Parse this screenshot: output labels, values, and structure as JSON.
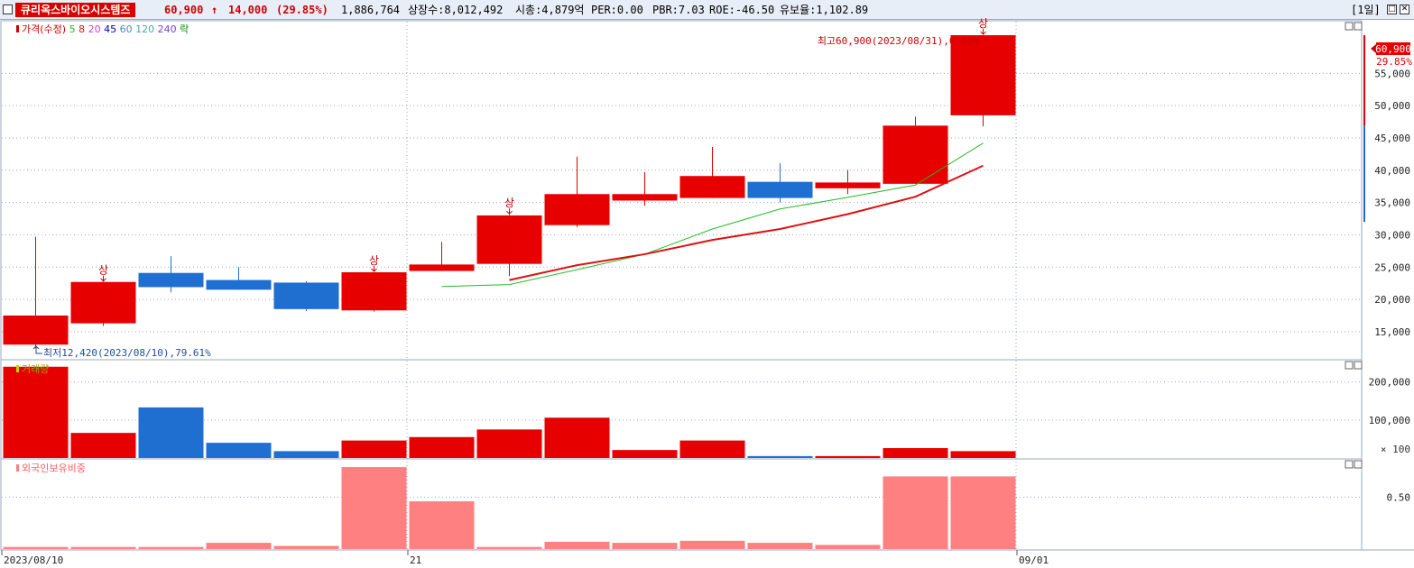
{
  "header": {
    "stock_name": "큐리옥스바이오시스템즈",
    "price": "60,900",
    "change_arrow": "↑",
    "change": "14,000",
    "change_pct": "(29.85%)",
    "volume": "1,886,764",
    "shares": "상장수:8,012,492",
    "market_cap": "시총:4,879억",
    "per": "PER:0.00",
    "pbr": "PBR:7.03",
    "roe": "ROE:-46.50",
    "float_ratio": "유보율:1,102.89",
    "period": "[1일]"
  },
  "colors": {
    "up": "#e60000",
    "down": "#1e6fd0",
    "ma5": "#22bb22",
    "ma8": "#dd1111",
    "foreign": "#ff8080",
    "grid": "#9aa8c0"
  },
  "chart_data": [
    {
      "type": "candlestick",
      "panel": "price",
      "legend": [
        {
          "label": "가격(수정)",
          "color": "#cc0000"
        },
        {
          "label": "5",
          "color": "#22bb22"
        },
        {
          "label": "8",
          "color": "#dd1111"
        },
        {
          "label": "20",
          "color": "#cc44cc"
        },
        {
          "label": "45",
          "color": "#0000aa"
        },
        {
          "label": "60",
          "color": "#4488cc"
        },
        {
          "label": "120",
          "color": "#44aaaa"
        },
        {
          "label": "240",
          "color": "#7744cc"
        },
        {
          "label": "락",
          "color": "#008800"
        }
      ],
      "x_labels": [
        "2023/08/10",
        "21",
        "09/01"
      ],
      "y_ticks": [
        15000,
        20000,
        25000,
        30000,
        35000,
        40000,
        45000,
        50000,
        55000
      ],
      "y_tick_labels": [
        "15,000",
        "20,000",
        "25,000",
        "30,000",
        "35,000",
        "40,000",
        "45,000",
        "50,000",
        "55,000"
      ],
      "ylim": [
        10800,
        63000
      ],
      "candles": [
        {
          "open": 13000,
          "high": 29700,
          "low": 12420,
          "close": 17500
        },
        {
          "open": 16300,
          "high": 22700,
          "low": 15900,
          "close": 22700
        },
        {
          "open": 24100,
          "high": 26700,
          "low": 21100,
          "close": 21900
        },
        {
          "open": 23000,
          "high": 25000,
          "low": 21500,
          "close": 21500
        },
        {
          "open": 22600,
          "high": 22800,
          "low": 18200,
          "close": 18500
        },
        {
          "open": 18300,
          "high": 24200,
          "low": 18100,
          "close": 24200
        },
        {
          "open": 24400,
          "high": 28900,
          "low": 24400,
          "close": 25400
        },
        {
          "open": 25500,
          "high": 33100,
          "low": 23600,
          "close": 33000
        },
        {
          "open": 31500,
          "high": 42100,
          "low": 31200,
          "close": 36300
        },
        {
          "open": 35300,
          "high": 39700,
          "low": 34500,
          "close": 36300
        },
        {
          "open": 35700,
          "high": 43600,
          "low": 35700,
          "close": 39100
        },
        {
          "open": 38200,
          "high": 41100,
          "low": 35000,
          "close": 35700
        },
        {
          "open": 37200,
          "high": 40000,
          "low": 36300,
          "close": 38100
        },
        {
          "open": 37900,
          "high": 48300,
          "low": 37900,
          "close": 46900
        },
        {
          "open": 48500,
          "high": 60900,
          "low": 46800,
          "close": 60900
        }
      ],
      "upper_limit_marks": [
        1,
        5,
        7,
        14
      ],
      "upper_limit_label": "상",
      "ma5": [
        null,
        null,
        null,
        null,
        null,
        null,
        22000,
        22300,
        24600,
        27000,
        30900,
        34000,
        35800,
        37700,
        44200
      ],
      "ma8": [
        null,
        null,
        null,
        null,
        null,
        null,
        null,
        23000,
        25300,
        27000,
        29200,
        30900,
        33200,
        35900,
        40700
      ],
      "current_price_label": "60,900",
      "current_pct_label": "29.85%",
      "high_annotation": "최고60,900(2023/08/31),0.00%",
      "low_annotation": "최저12,420(2023/08/10),79.61%"
    },
    {
      "type": "bar",
      "panel": "volume",
      "legend": "거래량",
      "values": [
        240000,
        66000,
        133000,
        40000,
        18000,
        46000,
        55000,
        75000,
        106000,
        21000,
        46000,
        5000,
        5000,
        26000,
        18000
      ],
      "up": [
        true,
        true,
        false,
        false,
        false,
        true,
        true,
        true,
        true,
        true,
        true,
        false,
        true,
        true,
        true
      ],
      "y_ticks": [
        100000,
        200000
      ],
      "y_tick_labels": [
        "100,000",
        "200,000"
      ],
      "unit_label": "× 100",
      "ylim": [
        0,
        256000
      ]
    },
    {
      "type": "bar",
      "panel": "foreign_ownership",
      "legend": "외국인보유비중",
      "values": [
        0.02,
        0.02,
        0.02,
        0.06,
        0.03,
        0.79,
        0.46,
        0.02,
        0.07,
        0.06,
        0.08,
        0.06,
        0.04,
        0.7,
        0.7
      ],
      "y_ticks": [
        0.5
      ],
      "y_tick_labels": [
        "0.50"
      ],
      "ylim": [
        0,
        0.86
      ]
    }
  ]
}
